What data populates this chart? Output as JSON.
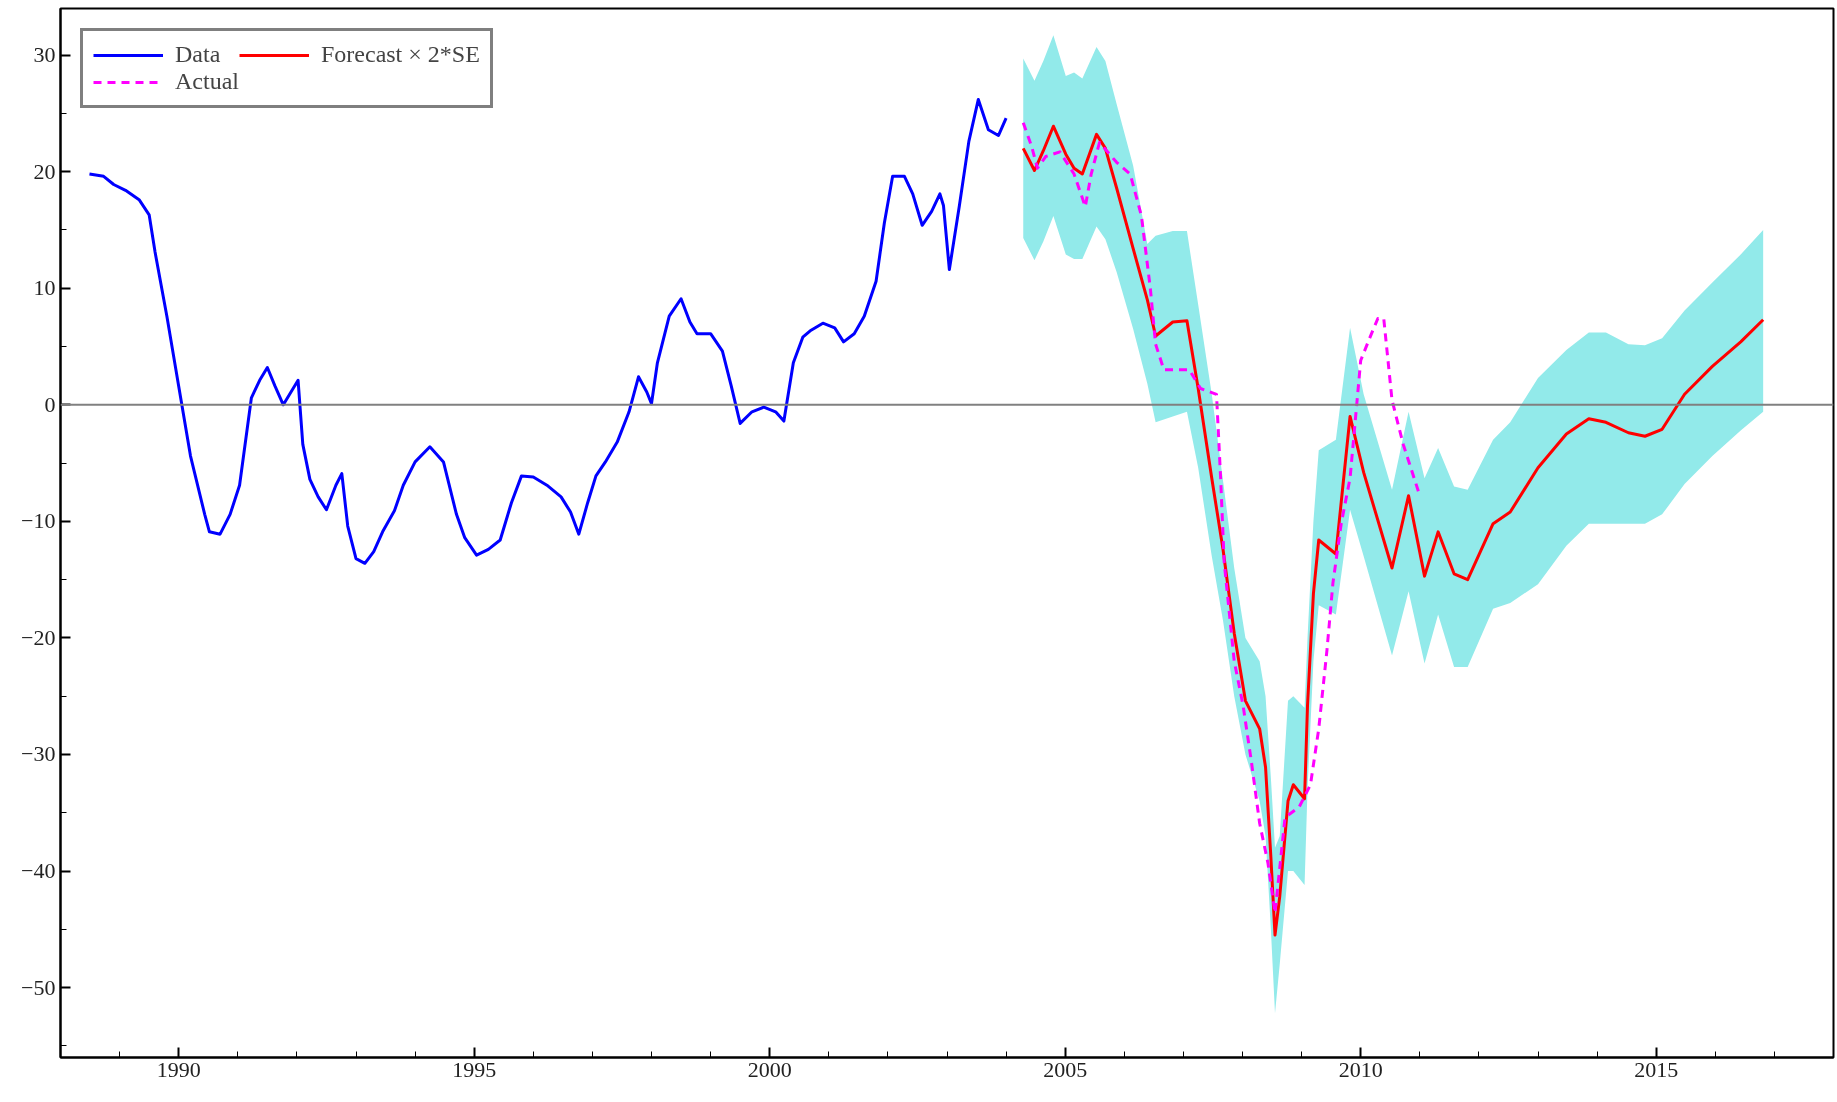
{
  "chart_data": {
    "type": "line",
    "xlim": [
      1988,
      2018
    ],
    "ylim": [
      -56,
      34
    ],
    "xticks": [
      1990,
      1995,
      2000,
      2005,
      2010,
      2015
    ],
    "yticks": [
      -50,
      -40,
      -30,
      -20,
      -10,
      0,
      10,
      20,
      30
    ],
    "grid": false,
    "legend": "top left",
    "marker": "none",
    "ref_lines": [
      {
        "axis": "y",
        "value": 0,
        "color": "#808080"
      }
    ],
    "series": [
      {
        "name": "Data",
        "color": "#0000ff",
        "line_style": "solid",
        "x": [
          1988.49,
          1988.73,
          1988.9,
          1989.1,
          1989.33,
          1989.5,
          1989.6,
          1989.8,
          1990.0,
          1990.2,
          1990.44,
          1990.52,
          1990.7,
          1990.87,
          1991.03,
          1991.23,
          1991.37,
          1991.5,
          1991.63,
          1991.77,
          1991.9,
          1992.02,
          1992.1,
          1992.22,
          1992.36,
          1992.5,
          1992.66,
          1992.76,
          1992.86,
          1993.0,
          1993.15,
          1993.3,
          1993.45,
          1993.65,
          1993.8,
          1994.0,
          1994.25,
          1994.48,
          1994.7,
          1994.84,
          1995.04,
          1995.24,
          1995.44,
          1995.63,
          1995.8,
          1996.0,
          1996.23,
          1996.47,
          1996.63,
          1996.77,
          1996.92,
          1997.06,
          1997.22,
          1997.42,
          1997.62,
          1997.78,
          1997.92,
          1998.0,
          1998.1,
          1998.3,
          1998.5,
          1998.65,
          1998.77,
          1999.0,
          1999.2,
          1999.35,
          1999.5,
          1999.7,
          1999.9,
          2000.1,
          2000.24,
          2000.4,
          2000.56,
          2000.7,
          2000.9,
          2001.1,
          2001.25,
          2001.43,
          2001.6,
          2001.8,
          2001.94,
          2002.08,
          2002.28,
          2002.42,
          2002.58,
          2002.74,
          2002.88,
          2002.94,
          2003.04,
          2003.21,
          2003.37,
          2003.53,
          2003.7,
          2003.87,
          2004.0
        ],
        "values": [
          19.8,
          19.6,
          18.9,
          18.4,
          17.6,
          16.3,
          13.1,
          7.6,
          1.6,
          -4.4,
          -9.4,
          -10.9,
          -11.1,
          -9.4,
          -6.9,
          0.6,
          2.1,
          3.2,
          1.6,
          0,
          1.1,
          2.1,
          -3.4,
          -6.4,
          -7.9,
          -9.0,
          -6.9,
          -5.9,
          -10.4,
          -13.2,
          -13.6,
          -12.6,
          -10.9,
          -9.1,
          -6.9,
          -4.9,
          -3.6,
          -4.9,
          -9.4,
          -11.4,
          -12.9,
          -12.4,
          -11.6,
          -8.4,
          -6.1,
          -6.2,
          -6.9,
          -7.9,
          -9.2,
          -11.1,
          -8.4,
          -6.1,
          -4.9,
          -3.2,
          -0.6,
          2.4,
          1.1,
          0.1,
          3.6,
          7.6,
          9.1,
          7.1,
          6.1,
          6.1,
          4.6,
          1.6,
          -1.6,
          -0.6,
          -0.2,
          -0.6,
          -1.4,
          3.6,
          5.8,
          6.4,
          7.0,
          6.6,
          5.4,
          6.1,
          7.6,
          10.6,
          15.6,
          19.6,
          19.6,
          18.1,
          15.4,
          16.6,
          18.1,
          17.1,
          11.6,
          17.1,
          22.6,
          26.2,
          23.6,
          23.1,
          24.6
        ]
      },
      {
        "name": "Forecast × 2*SE",
        "color": "#ff0000",
        "line_style": "solid",
        "x": [
          2004.29,
          2004.48,
          2004.63,
          2004.8,
          2005.01,
          2005.15,
          2005.29,
          2005.53,
          2005.68,
          2005.87,
          2006.15,
          2006.39,
          2006.53,
          2006.82,
          2007.06,
          2007.25,
          2007.48,
          2007.67,
          2007.86,
          2008.05,
          2008.29,
          2008.39,
          2008.48,
          2008.55,
          2008.63,
          2008.77,
          2008.86,
          2009.05,
          2009.1,
          2009.2,
          2009.29,
          2009.58,
          2009.82,
          2010.05,
          2010.53,
          2010.81,
          2011.08,
          2011.31,
          2011.58,
          2011.81,
          2012.24,
          2012.53,
          2013.0,
          2013.48,
          2013.86,
          2014.15,
          2014.53,
          2014.81,
          2015.1,
          2015.48,
          2015.95,
          2016.43,
          2016.81
        ],
        "values": [
          22.0,
          20.1,
          21.8,
          23.9,
          21.5,
          20.3,
          19.8,
          23.2,
          22.0,
          18.6,
          13.4,
          9.0,
          5.9,
          7.1,
          7.2,
          1.4,
          -6.3,
          -12.4,
          -19.6,
          -25.4,
          -27.8,
          -31.1,
          -38.8,
          -45.5,
          -42.2,
          -34.0,
          -32.6,
          -33.8,
          -25.8,
          -16.2,
          -11.6,
          -12.8,
          -1.0,
          -5.8,
          -14.0,
          -7.8,
          -14.7,
          -10.9,
          -14.5,
          -15.0,
          -10.2,
          -9.2,
          -5.4,
          -2.5,
          -1.2,
          -1.5,
          -2.4,
          -2.7,
          -2.1,
          0.9,
          3.3,
          5.4,
          7.3
        ],
        "upper": [
          29.7,
          27.8,
          29.5,
          31.7,
          28.2,
          28.5,
          28.0,
          30.7,
          29.5,
          25.8,
          20.5,
          13.8,
          14.5,
          14.9,
          14.9,
          8.6,
          0.9,
          -6.5,
          -14.0,
          -20.0,
          -22.0,
          -25.0,
          -32.0,
          -38.0,
          -37.0,
          -25.4,
          -25.0,
          -26.0,
          -20.0,
          -10.0,
          -3.9,
          -3.0,
          6.6,
          0.9,
          -7.3,
          -0.6,
          -6.3,
          -3.7,
          -7.0,
          -7.3,
          -3.0,
          -1.5,
          2.3,
          4.7,
          6.2,
          6.2,
          5.2,
          5.1,
          5.7,
          8.1,
          10.5,
          12.9,
          15.0
        ],
        "lower": [
          14.3,
          12.4,
          14.0,
          16.2,
          12.9,
          12.5,
          12.5,
          15.3,
          14.2,
          11.4,
          6.5,
          1.8,
          -1.5,
          -1.0,
          -0.6,
          -5.4,
          -13.0,
          -18.5,
          -25.0,
          -30.0,
          -34.0,
          -37.0,
          -45.0,
          -52.2,
          -48.0,
          -40.0,
          -40.0,
          -41.2,
          -33.0,
          -22.0,
          -17.2,
          -18.0,
          -9.0,
          -13.0,
          -21.5,
          -16.0,
          -22.2,
          -18.0,
          -22.5,
          -22.5,
          -17.5,
          -17.0,
          -15.4,
          -12.1,
          -10.2,
          -10.2,
          -10.2,
          -10.2,
          -9.4,
          -6.8,
          -4.4,
          -2.2,
          -0.6
        ]
      },
      {
        "name": "Actual",
        "color": "#ff00ff",
        "line_style": "dashed",
        "x": [
          2004.29,
          2004.43,
          2004.53,
          2004.67,
          2004.91,
          2005.15,
          2005.34,
          2005.44,
          2005.58,
          2005.87,
          2006.1,
          2006.29,
          2006.44,
          2006.53,
          2006.67,
          2007.1,
          2007.29,
          2007.56,
          2007.63,
          2007.69,
          2007.86,
          2008.01,
          2008.15,
          2008.29,
          2008.43,
          2008.55,
          2008.72,
          2008.96,
          2009.15,
          2009.29,
          2009.43,
          2009.53,
          2009.67,
          2009.82,
          2010.0,
          2010.15,
          2010.29,
          2010.39,
          2010.53,
          2010.72,
          2011.0
        ],
        "values": [
          24.2,
          22.2,
          20.3,
          21.3,
          21.7,
          19.8,
          17.0,
          19.8,
          22.5,
          20.8,
          19.8,
          16.2,
          10.0,
          5.2,
          3.0,
          3.0,
          1.4,
          0.9,
          -6.3,
          -13.5,
          -22.0,
          -25.8,
          -30.6,
          -35.9,
          -39.3,
          -43.6,
          -35.4,
          -34.5,
          -32.6,
          -27.8,
          -21.0,
          -15.3,
          -10.2,
          -6.3,
          3.8,
          5.7,
          7.4,
          7.4,
          0.4,
          -3.4,
          -7.8
        ]
      }
    ]
  }
}
